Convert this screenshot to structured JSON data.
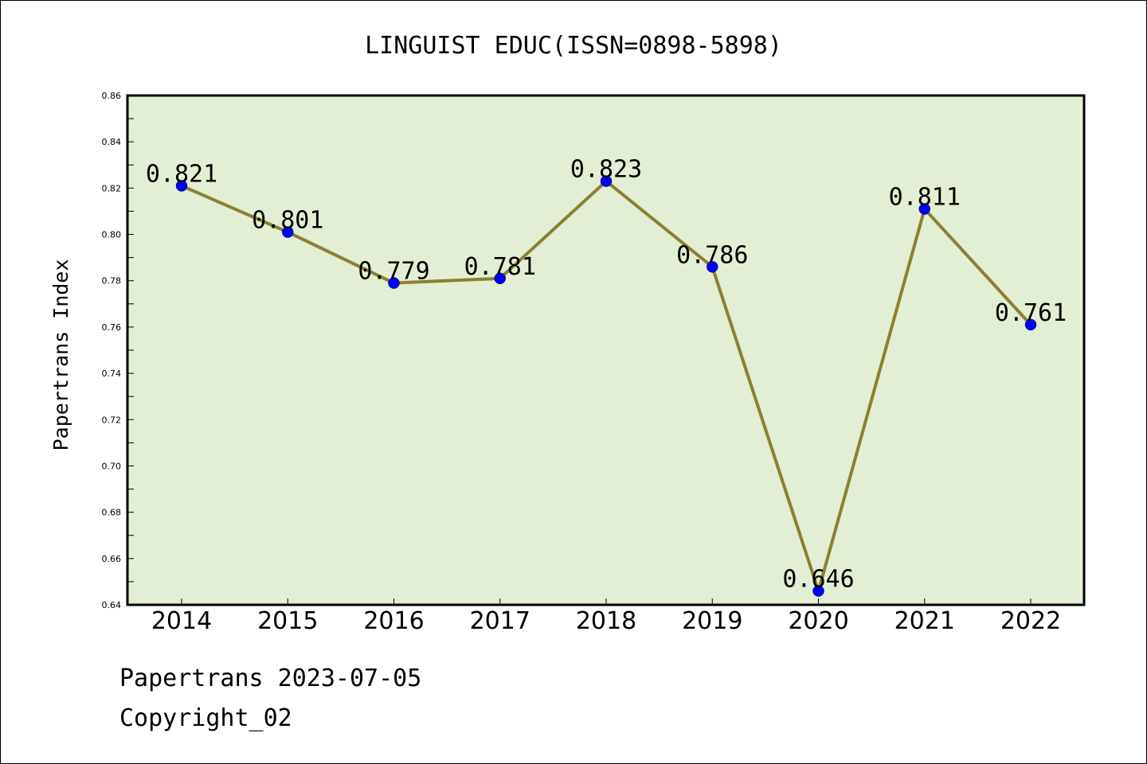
{
  "chart_data": {
    "type": "line",
    "title": "LINGUIST EDUC(ISSN=0898-5898)",
    "xlabel": "",
    "ylabel": "Papertrans Index",
    "categories": [
      "2014",
      "2015",
      "2016",
      "2017",
      "2018",
      "2019",
      "2020",
      "2021",
      "2022"
    ],
    "series": [
      {
        "values": [
          0.821,
          0.801,
          0.779,
          0.781,
          0.823,
          0.786,
          0.646,
          0.811,
          0.761
        ],
        "labels": [
          "0.821",
          "0.801",
          "0.779",
          "0.781",
          "0.823",
          "0.786",
          "0.646",
          "0.811",
          "0.761"
        ],
        "line_color": "#8b7f32",
        "marker_color": "#0000ff"
      }
    ],
    "ylim": [
      0.64,
      0.86
    ],
    "yticks": [
      "0.64",
      "0.66",
      "0.68",
      "0.70",
      "0.72",
      "0.74",
      "0.76",
      "0.78",
      "0.80",
      "0.82",
      "0.84",
      "0.86"
    ],
    "plot_background": "#e2efd4",
    "grid": false,
    "legend": "none"
  },
  "footer": {
    "line1": "Papertrans 2023-07-05",
    "line2": "Copyright_02"
  }
}
